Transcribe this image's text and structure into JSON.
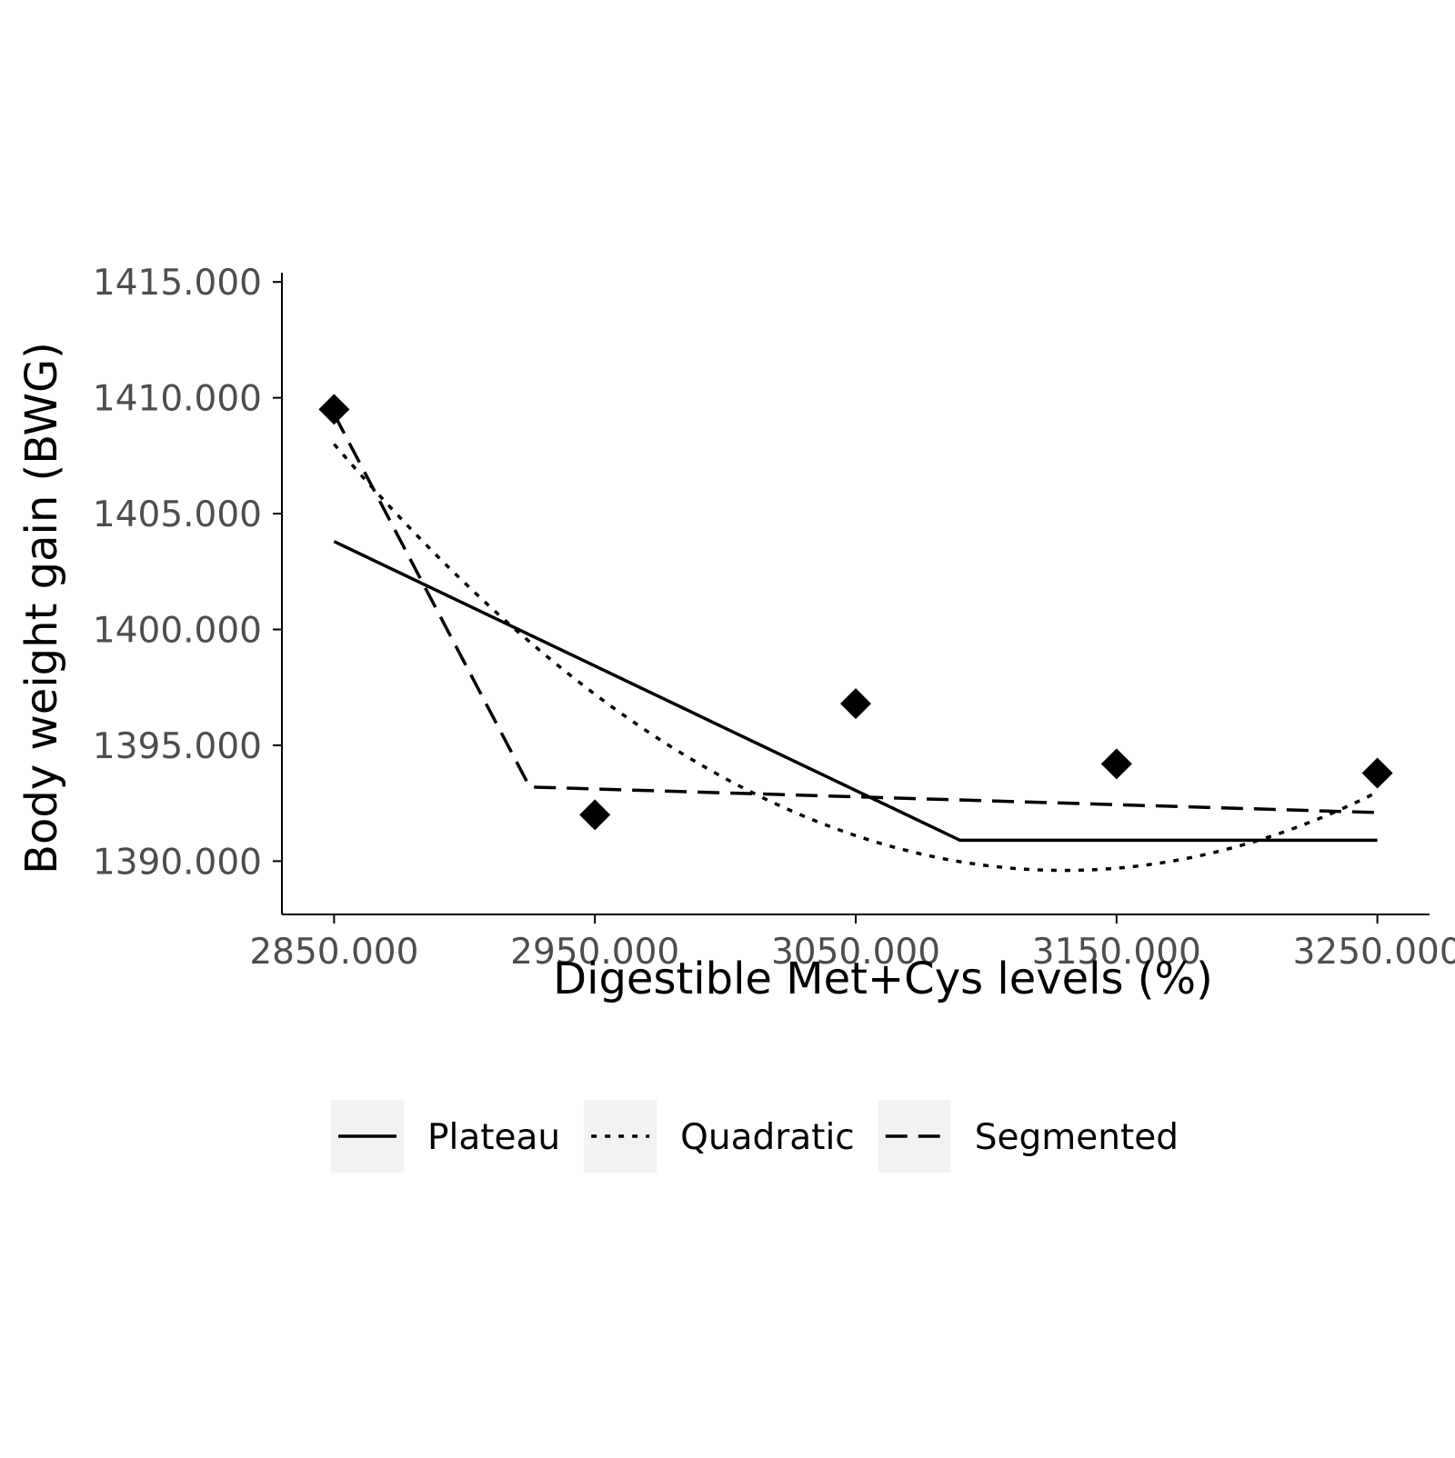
{
  "chart_data": {
    "type": "line",
    "title": "",
    "xlabel": "Digestible Met+Cys levels (%)",
    "ylabel": "Body weight gain (BWG)",
    "xlim": [
      2830,
      3270
    ],
    "ylim": [
      1387.7,
      1415.4
    ],
    "x_ticks": [
      2850,
      2950,
      3050,
      3150,
      3250
    ],
    "x_tick_labels": [
      "2850.000",
      "2950.000",
      "3050.000",
      "3150.000",
      "3250.000"
    ],
    "y_ticks": [
      1390,
      1395,
      1400,
      1405,
      1410,
      1415
    ],
    "y_tick_labels": [
      "1390.000",
      "1395.000",
      "1400.000",
      "1405.000",
      "1410.000",
      "1415.000"
    ],
    "grid": false,
    "legend_position": "bottom",
    "points": {
      "marker": "diamond",
      "x": [
        2850,
        2950,
        3050,
        3150,
        3250
      ],
      "y": [
        1409.5,
        1392.0,
        1396.8,
        1394.2,
        1393.8
      ]
    },
    "series": [
      {
        "name": "Plateau",
        "linestyle": "solid",
        "x": [
          2850,
          3090,
          3250
        ],
        "y": [
          1403.8,
          1390.9,
          1390.9
        ]
      },
      {
        "name": "Quadratic",
        "linestyle": "dotted",
        "quadratic": {
          "vertex_x": 3130,
          "vertex_y": 1389.6,
          "at_x": 2850,
          "at_y": 1408.0
        },
        "x_range": [
          2850,
          3250
        ]
      },
      {
        "name": "Segmented",
        "linestyle": "dashed",
        "x": [
          2850,
          2925,
          3250
        ],
        "y": [
          1409.3,
          1393.2,
          1392.1
        ]
      }
    ]
  }
}
